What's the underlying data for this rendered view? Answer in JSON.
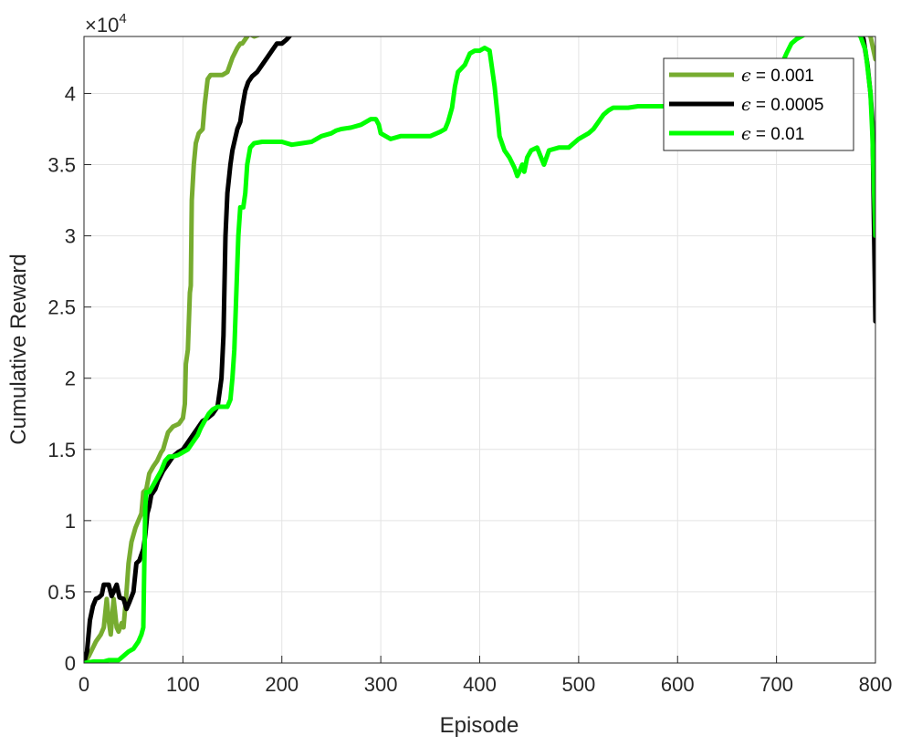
{
  "chart_data": {
    "type": "line",
    "xlabel": "Episode",
    "ylabel": "Cumulative Reward",
    "y_exponent_label": "×10",
    "y_exponent_power": "4",
    "xlim": [
      0,
      800
    ],
    "ylim": [
      0,
      4.4
    ],
    "y_scale_factor": 10000,
    "xticks": [
      0,
      100,
      200,
      300,
      400,
      500,
      600,
      700,
      800
    ],
    "yticks": [
      0,
      0.5,
      1,
      1.5,
      2,
      2.5,
      3,
      3.5,
      4
    ],
    "ytick_labels": [
      "0",
      "0.5",
      "1",
      "1.5",
      "2",
      "2.5",
      "3",
      "3.5",
      "4"
    ],
    "grid": true,
    "legend_position": "top-right",
    "legend_prefix": "ϵ",
    "series": [
      {
        "name": "= 0.001",
        "color": "#77AC30",
        "points": [
          [
            0,
            0
          ],
          [
            5,
            0.05
          ],
          [
            12,
            0.15
          ],
          [
            17,
            0.2
          ],
          [
            20,
            0.25
          ],
          [
            23,
            0.45
          ],
          [
            25,
            0.3
          ],
          [
            27,
            0.2
          ],
          [
            30,
            0.45
          ],
          [
            33,
            0.25
          ],
          [
            35,
            0.22
          ],
          [
            38,
            0.28
          ],
          [
            40,
            0.25
          ],
          [
            43,
            0.5
          ],
          [
            45,
            0.7
          ],
          [
            48,
            0.85
          ],
          [
            52,
            0.95
          ],
          [
            55,
            1.0
          ],
          [
            58,
            1.05
          ],
          [
            60,
            1.2
          ],
          [
            63,
            1.22
          ],
          [
            66,
            1.33
          ],
          [
            70,
            1.38
          ],
          [
            74,
            1.42
          ],
          [
            78,
            1.48
          ],
          [
            80,
            1.5
          ],
          [
            82,
            1.55
          ],
          [
            85,
            1.62
          ],
          [
            90,
            1.66
          ],
          [
            96,
            1.68
          ],
          [
            100,
            1.72
          ],
          [
            102,
            1.82
          ],
          [
            103,
            2.1
          ],
          [
            105,
            2.2
          ],
          [
            107,
            2.6
          ],
          [
            108,
            2.65
          ],
          [
            109,
            3.25
          ],
          [
            111,
            3.5
          ],
          [
            113,
            3.65
          ],
          [
            116,
            3.72
          ],
          [
            120,
            3.75
          ],
          [
            122,
            3.92
          ],
          [
            125,
            4.1
          ],
          [
            128,
            4.13
          ],
          [
            140,
            4.13
          ],
          [
            145,
            4.15
          ],
          [
            150,
            4.25
          ],
          [
            155,
            4.32
          ],
          [
            158,
            4.35
          ],
          [
            160,
            4.35
          ],
          [
            163,
            4.38
          ],
          [
            167,
            4.42
          ],
          [
            172,
            4.4
          ],
          [
            180,
            4.42
          ],
          [
            190,
            4.42
          ],
          [
            200,
            4.42
          ],
          [
            210,
            4.44
          ],
          [
            220,
            4.44
          ],
          [
            240,
            4.44
          ],
          [
            250,
            4.42
          ],
          [
            260,
            4.43
          ],
          [
            280,
            4.42
          ],
          [
            300,
            4.44
          ],
          [
            320,
            4.44
          ],
          [
            350,
            4.44
          ],
          [
            360,
            4.43
          ],
          [
            370,
            4.44
          ],
          [
            380,
            4.44
          ],
          [
            400,
            4.44
          ],
          [
            500,
            4.44
          ],
          [
            600,
            4.44
          ],
          [
            700,
            4.44
          ],
          [
            760,
            4.44
          ],
          [
            775,
            4.43
          ],
          [
            790,
            4.44
          ],
          [
            795,
            4.4
          ],
          [
            800,
            4.24
          ]
        ]
      },
      {
        "name": "= 0.0005",
        "color": "#000000",
        "points": [
          [
            0,
            0
          ],
          [
            3,
            0.08
          ],
          [
            6,
            0.3
          ],
          [
            9,
            0.4
          ],
          [
            12,
            0.45
          ],
          [
            15,
            0.46
          ],
          [
            18,
            0.48
          ],
          [
            20,
            0.55
          ],
          [
            25,
            0.55
          ],
          [
            28,
            0.47
          ],
          [
            30,
            0.5
          ],
          [
            33,
            0.55
          ],
          [
            36,
            0.46
          ],
          [
            40,
            0.45
          ],
          [
            43,
            0.38
          ],
          [
            46,
            0.43
          ],
          [
            50,
            0.5
          ],
          [
            53,
            0.7
          ],
          [
            56,
            0.72
          ],
          [
            60,
            0.8
          ],
          [
            62,
            0.9
          ],
          [
            64,
            1.05
          ],
          [
            66,
            1.1
          ],
          [
            68,
            1.18
          ],
          [
            72,
            1.22
          ],
          [
            75,
            1.28
          ],
          [
            80,
            1.35
          ],
          [
            85,
            1.4
          ],
          [
            90,
            1.45
          ],
          [
            95,
            1.48
          ],
          [
            100,
            1.5
          ],
          [
            105,
            1.55
          ],
          [
            110,
            1.6
          ],
          [
            115,
            1.65
          ],
          [
            120,
            1.7
          ],
          [
            125,
            1.72
          ],
          [
            130,
            1.75
          ],
          [
            135,
            1.8
          ],
          [
            137,
            1.9
          ],
          [
            139,
            2.0
          ],
          [
            141,
            2.3
          ],
          [
            143,
            3.0
          ],
          [
            145,
            3.3
          ],
          [
            148,
            3.5
          ],
          [
            150,
            3.6
          ],
          [
            155,
            3.75
          ],
          [
            158,
            3.8
          ],
          [
            160,
            3.9
          ],
          [
            163,
            4.02
          ],
          [
            166,
            4.08
          ],
          [
            170,
            4.12
          ],
          [
            175,
            4.15
          ],
          [
            180,
            4.2
          ],
          [
            185,
            4.25
          ],
          [
            190,
            4.3
          ],
          [
            195,
            4.35
          ],
          [
            200,
            4.35
          ],
          [
            205,
            4.38
          ],
          [
            210,
            4.42
          ],
          [
            215,
            4.44
          ],
          [
            230,
            4.44
          ],
          [
            250,
            4.44
          ],
          [
            300,
            4.44
          ],
          [
            350,
            4.44
          ],
          [
            370,
            4.43
          ],
          [
            380,
            4.44
          ],
          [
            400,
            4.44
          ],
          [
            500,
            4.44
          ],
          [
            600,
            4.44
          ],
          [
            700,
            4.44
          ],
          [
            780,
            4.44
          ],
          [
            785,
            4.42
          ],
          [
            788,
            4.38
          ],
          [
            792,
            4.2
          ],
          [
            795,
            4.0
          ],
          [
            797,
            3.8
          ],
          [
            800,
            2.4
          ]
        ]
      },
      {
        "name": "= 0.01",
        "color": "#00FF00",
        "points": [
          [
            0,
            0
          ],
          [
            10,
            0.01
          ],
          [
            20,
            0.01
          ],
          [
            25,
            0.02
          ],
          [
            30,
            0.02
          ],
          [
            35,
            0.02
          ],
          [
            40,
            0.05
          ],
          [
            45,
            0.08
          ],
          [
            50,
            0.1
          ],
          [
            55,
            0.15
          ],
          [
            58,
            0.2
          ],
          [
            60,
            0.25
          ],
          [
            61,
            0.7
          ],
          [
            62,
            1.1
          ],
          [
            63,
            1.2
          ],
          [
            66,
            1.2
          ],
          [
            70,
            1.25
          ],
          [
            74,
            1.3
          ],
          [
            78,
            1.35
          ],
          [
            82,
            1.42
          ],
          [
            86,
            1.45
          ],
          [
            90,
            1.45
          ],
          [
            95,
            1.46
          ],
          [
            100,
            1.48
          ],
          [
            105,
            1.5
          ],
          [
            110,
            1.55
          ],
          [
            115,
            1.6
          ],
          [
            118,
            1.65
          ],
          [
            122,
            1.7
          ],
          [
            126,
            1.75
          ],
          [
            130,
            1.78
          ],
          [
            135,
            1.8
          ],
          [
            140,
            1.8
          ],
          [
            145,
            1.8
          ],
          [
            148,
            1.85
          ],
          [
            150,
            2.0
          ],
          [
            152,
            2.2
          ],
          [
            154,
            2.6
          ],
          [
            156,
            3.0
          ],
          [
            158,
            3.2
          ],
          [
            161,
            3.2
          ],
          [
            163,
            3.3
          ],
          [
            165,
            3.5
          ],
          [
            168,
            3.62
          ],
          [
            172,
            3.65
          ],
          [
            180,
            3.66
          ],
          [
            200,
            3.66
          ],
          [
            210,
            3.64
          ],
          [
            220,
            3.65
          ],
          [
            230,
            3.66
          ],
          [
            240,
            3.7
          ],
          [
            250,
            3.72
          ],
          [
            255,
            3.74
          ],
          [
            260,
            3.75
          ],
          [
            270,
            3.76
          ],
          [
            280,
            3.78
          ],
          [
            285,
            3.8
          ],
          [
            290,
            3.82
          ],
          [
            295,
            3.82
          ],
          [
            298,
            3.78
          ],
          [
            300,
            3.72
          ],
          [
            305,
            3.7
          ],
          [
            310,
            3.68
          ],
          [
            320,
            3.7
          ],
          [
            330,
            3.7
          ],
          [
            340,
            3.7
          ],
          [
            350,
            3.7
          ],
          [
            360,
            3.73
          ],
          [
            365,
            3.75
          ],
          [
            368,
            3.8
          ],
          [
            372,
            3.9
          ],
          [
            375,
            4.05
          ],
          [
            378,
            4.15
          ],
          [
            385,
            4.2
          ],
          [
            390,
            4.28
          ],
          [
            395,
            4.3
          ],
          [
            400,
            4.3
          ],
          [
            405,
            4.32
          ],
          [
            410,
            4.3
          ],
          [
            412,
            4.2
          ],
          [
            415,
            4.05
          ],
          [
            418,
            3.85
          ],
          [
            420,
            3.7
          ],
          [
            425,
            3.6
          ],
          [
            430,
            3.55
          ],
          [
            435,
            3.48
          ],
          [
            438,
            3.42
          ],
          [
            440,
            3.45
          ],
          [
            443,
            3.5
          ],
          [
            445,
            3.45
          ],
          [
            448,
            3.55
          ],
          [
            452,
            3.6
          ],
          [
            458,
            3.62
          ],
          [
            462,
            3.55
          ],
          [
            465,
            3.5
          ],
          [
            470,
            3.6
          ],
          [
            480,
            3.62
          ],
          [
            490,
            3.62
          ],
          [
            500,
            3.68
          ],
          [
            510,
            3.72
          ],
          [
            515,
            3.75
          ],
          [
            520,
            3.8
          ],
          [
            525,
            3.85
          ],
          [
            530,
            3.88
          ],
          [
            535,
            3.9
          ],
          [
            540,
            3.9
          ],
          [
            550,
            3.9
          ],
          [
            560,
            3.91
          ],
          [
            580,
            3.91
          ],
          [
            600,
            3.91
          ],
          [
            620,
            3.91
          ],
          [
            640,
            3.91
          ],
          [
            660,
            3.91
          ],
          [
            680,
            3.93
          ],
          [
            690,
            3.95
          ],
          [
            695,
            4.0
          ],
          [
            700,
            4.1
          ],
          [
            705,
            4.2
          ],
          [
            710,
            4.28
          ],
          [
            715,
            4.35
          ],
          [
            720,
            4.38
          ],
          [
            725,
            4.4
          ],
          [
            730,
            4.42
          ],
          [
            740,
            4.44
          ],
          [
            750,
            4.42
          ],
          [
            760,
            4.44
          ],
          [
            770,
            4.42
          ],
          [
            775,
            4.44
          ],
          [
            780,
            4.43
          ],
          [
            785,
            4.4
          ],
          [
            790,
            4.3
          ],
          [
            795,
            4.0
          ],
          [
            797,
            3.7
          ],
          [
            800,
            3.0
          ]
        ]
      }
    ]
  }
}
